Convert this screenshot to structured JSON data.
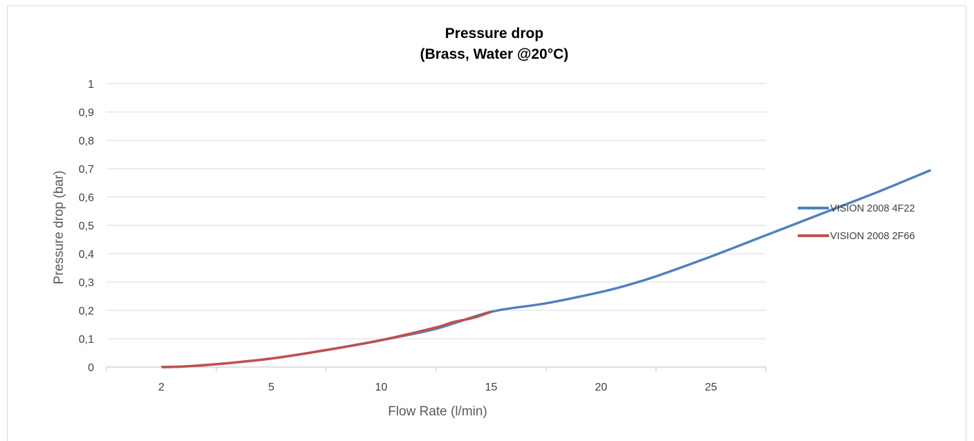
{
  "chart_data": {
    "type": "line",
    "title": "Pressure drop",
    "subtitle": "(Brass, Water @20°C)",
    "xlabel": "Flow Rate (l/min)",
    "ylabel": "Pressure drop (bar)",
    "x_tick_labels": [
      "2",
      "5",
      "10",
      "15",
      "20",
      "25"
    ],
    "y_ticks": [
      0,
      0.1,
      0.2,
      0.3,
      0.4,
      0.5,
      0.6,
      0.7,
      0.8,
      0.9,
      1
    ],
    "y_tick_labels": [
      "0",
      "0,1",
      "0,2",
      "0,3",
      "0,4",
      "0,5",
      "0,6",
      "0,7",
      "0,8",
      "0,9",
      "1"
    ],
    "ylim": [
      0,
      1
    ],
    "grid": true,
    "legend_position": "right",
    "series": [
      {
        "name": "VISION 2008 4F22",
        "color": "#4f81bd",
        "points": [
          [
            2,
            0
          ],
          [
            2.4,
            0.002
          ],
          [
            3,
            0.01
          ],
          [
            4,
            0.03
          ],
          [
            5,
            0.06
          ],
          [
            6,
            0.095
          ],
          [
            7,
            0.135
          ],
          [
            8,
            0.195
          ],
          [
            9,
            0.225
          ],
          [
            10,
            0.265
          ],
          [
            10.5,
            0.29
          ],
          [
            11,
            0.32
          ],
          [
            12,
            0.39
          ],
          [
            13,
            0.465
          ],
          [
            14,
            0.54
          ],
          [
            15,
            0.615
          ],
          [
            16,
            0.695
          ]
        ]
      },
      {
        "name": "VISION 2008 2F66",
        "color": "#c0504d",
        "points": [
          [
            2,
            0
          ],
          [
            2.4,
            0.002
          ],
          [
            3,
            0.01
          ],
          [
            4,
            0.03
          ],
          [
            5,
            0.06
          ],
          [
            6,
            0.095
          ],
          [
            7,
            0.14
          ],
          [
            7.3,
            0.158
          ],
          [
            7.7,
            0.175
          ],
          [
            8,
            0.195
          ]
        ]
      }
    ]
  }
}
